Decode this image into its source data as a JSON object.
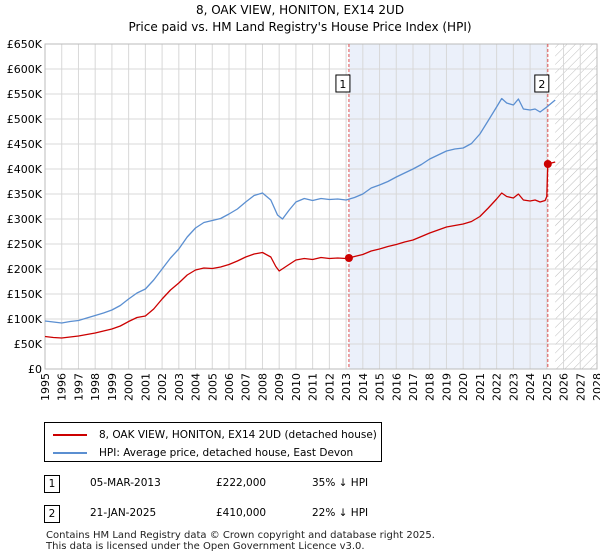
{
  "chart_data": {
    "type": "line",
    "title": "8, OAK VIEW, HONITON, EX14 2UD",
    "subtitle": "Price paid vs. HM Land Registry's House Price Index (HPI)",
    "xlim": [
      1995,
      2028
    ],
    "ylim": [
      0,
      650000
    ],
    "x_ticks": [
      1995,
      1996,
      1997,
      1998,
      1999,
      2000,
      2001,
      2002,
      2003,
      2004,
      2005,
      2006,
      2007,
      2008,
      2009,
      2010,
      2011,
      2012,
      2013,
      2014,
      2015,
      2016,
      2017,
      2018,
      2019,
      2020,
      2021,
      2022,
      2023,
      2024,
      2025,
      2026,
      2027,
      2028
    ],
    "y_ticks": [
      {
        "value": 0,
        "label": "£0"
      },
      {
        "value": 50000,
        "label": "£50K"
      },
      {
        "value": 100000,
        "label": "£100K"
      },
      {
        "value": 150000,
        "label": "£150K"
      },
      {
        "value": 200000,
        "label": "£200K"
      },
      {
        "value": 250000,
        "label": "£250K"
      },
      {
        "value": 300000,
        "label": "£300K"
      },
      {
        "value": 350000,
        "label": "£350K"
      },
      {
        "value": 400000,
        "label": "£400K"
      },
      {
        "value": 450000,
        "label": "£450K"
      },
      {
        "value": 500000,
        "label": "£500K"
      },
      {
        "value": 550000,
        "label": "£550K"
      },
      {
        "value": 600000,
        "label": "£600K"
      },
      {
        "value": 650000,
        "label": "£650K"
      }
    ],
    "grid": true,
    "shaded_region": {
      "from": 2013.17,
      "to": 2025.06,
      "color": "#dde6f7"
    },
    "hatched_region": {
      "from": 2025.5,
      "to": 2028
    },
    "series": [
      {
        "name": "8, OAK VIEW, HONITON, EX14 2UD (detached house)",
        "color": "#cc0000",
        "points": [
          [
            1995.0,
            65000
          ],
          [
            1995.5,
            63000
          ],
          [
            1996.0,
            62000
          ],
          [
            1996.5,
            64000
          ],
          [
            1997.0,
            66000
          ],
          [
            1997.5,
            69000
          ],
          [
            1998.0,
            72000
          ],
          [
            1998.5,
            76000
          ],
          [
            1999.0,
            80000
          ],
          [
            1999.5,
            86000
          ],
          [
            2000.0,
            95000
          ],
          [
            2000.5,
            103000
          ],
          [
            2001.0,
            106000
          ],
          [
            2001.5,
            120000
          ],
          [
            2002.0,
            140000
          ],
          [
            2002.5,
            158000
          ],
          [
            2003.0,
            172000
          ],
          [
            2003.5,
            188000
          ],
          [
            2004.0,
            198000
          ],
          [
            2004.5,
            202000
          ],
          [
            2005.0,
            201000
          ],
          [
            2005.5,
            204000
          ],
          [
            2006.0,
            209000
          ],
          [
            2006.5,
            216000
          ],
          [
            2007.0,
            224000
          ],
          [
            2007.5,
            230000
          ],
          [
            2008.0,
            233000
          ],
          [
            2008.5,
            224000
          ],
          [
            2008.8,
            205000
          ],
          [
            2009.0,
            196000
          ],
          [
            2009.5,
            207000
          ],
          [
            2010.0,
            218000
          ],
          [
            2010.5,
            221000
          ],
          [
            2011.0,
            219000
          ],
          [
            2011.5,
            223000
          ],
          [
            2012.0,
            221000
          ],
          [
            2012.5,
            222000
          ],
          [
            2013.0,
            221000
          ],
          [
            2013.17,
            222000
          ],
          [
            2013.5,
            225000
          ],
          [
            2014.0,
            229000
          ],
          [
            2014.5,
            236000
          ],
          [
            2015.0,
            240000
          ],
          [
            2015.5,
            245000
          ],
          [
            2016.0,
            249000
          ],
          [
            2016.5,
            254000
          ],
          [
            2017.0,
            258000
          ],
          [
            2017.5,
            265000
          ],
          [
            2018.0,
            272000
          ],
          [
            2018.5,
            278000
          ],
          [
            2019.0,
            284000
          ],
          [
            2019.5,
            287000
          ],
          [
            2020.0,
            290000
          ],
          [
            2020.5,
            295000
          ],
          [
            2021.0,
            305000
          ],
          [
            2021.5,
            322000
          ],
          [
            2022.0,
            340000
          ],
          [
            2022.3,
            352000
          ],
          [
            2022.6,
            345000
          ],
          [
            2023.0,
            342000
          ],
          [
            2023.3,
            350000
          ],
          [
            2023.6,
            338000
          ],
          [
            2024.0,
            336000
          ],
          [
            2024.3,
            338000
          ],
          [
            2024.6,
            334000
          ],
          [
            2024.9,
            337000
          ],
          [
            2025.0,
            345000
          ],
          [
            2025.06,
            410000
          ],
          [
            2025.5,
            414000
          ]
        ]
      },
      {
        "name": "HPI: Average price, detached house, East Devon",
        "color": "#5b8fd1",
        "points": [
          [
            1995.0,
            96000
          ],
          [
            1995.5,
            94000
          ],
          [
            1996.0,
            92000
          ],
          [
            1996.5,
            95000
          ],
          [
            1997.0,
            97000
          ],
          [
            1997.5,
            102000
          ],
          [
            1998.0,
            107000
          ],
          [
            1998.5,
            112000
          ],
          [
            1999.0,
            118000
          ],
          [
            1999.5,
            127000
          ],
          [
            2000.0,
            140000
          ],
          [
            2000.5,
            152000
          ],
          [
            2001.0,
            160000
          ],
          [
            2001.5,
            178000
          ],
          [
            2002.0,
            200000
          ],
          [
            2002.5,
            222000
          ],
          [
            2003.0,
            240000
          ],
          [
            2003.5,
            264000
          ],
          [
            2004.0,
            282000
          ],
          [
            2004.5,
            293000
          ],
          [
            2005.0,
            297000
          ],
          [
            2005.5,
            301000
          ],
          [
            2006.0,
            310000
          ],
          [
            2006.5,
            320000
          ],
          [
            2007.0,
            334000
          ],
          [
            2007.5,
            347000
          ],
          [
            2008.0,
            352000
          ],
          [
            2008.5,
            338000
          ],
          [
            2008.9,
            308000
          ],
          [
            2009.2,
            300000
          ],
          [
            2009.6,
            318000
          ],
          [
            2010.0,
            334000
          ],
          [
            2010.5,
            341000
          ],
          [
            2011.0,
            337000
          ],
          [
            2011.5,
            341000
          ],
          [
            2012.0,
            339000
          ],
          [
            2012.5,
            340000
          ],
          [
            2013.0,
            338000
          ],
          [
            2013.5,
            343000
          ],
          [
            2014.0,
            350000
          ],
          [
            2014.5,
            362000
          ],
          [
            2015.0,
            368000
          ],
          [
            2015.5,
            375000
          ],
          [
            2016.0,
            384000
          ],
          [
            2016.5,
            392000
          ],
          [
            2017.0,
            400000
          ],
          [
            2017.5,
            409000
          ],
          [
            2018.0,
            420000
          ],
          [
            2018.5,
            428000
          ],
          [
            2019.0,
            436000
          ],
          [
            2019.5,
            440000
          ],
          [
            2020.0,
            442000
          ],
          [
            2020.5,
            451000
          ],
          [
            2021.0,
            470000
          ],
          [
            2021.5,
            497000
          ],
          [
            2022.0,
            524000
          ],
          [
            2022.3,
            541000
          ],
          [
            2022.6,
            532000
          ],
          [
            2023.0,
            528000
          ],
          [
            2023.3,
            540000
          ],
          [
            2023.6,
            520000
          ],
          [
            2024.0,
            518000
          ],
          [
            2024.3,
            520000
          ],
          [
            2024.6,
            514000
          ],
          [
            2025.0,
            524000
          ],
          [
            2025.5,
            538000
          ]
        ]
      }
    ],
    "annotations": [
      {
        "label": "1",
        "x": 2013.17,
        "y": 222000
      },
      {
        "label": "2",
        "x": 2025.06,
        "y": 410000
      }
    ]
  },
  "legend": {
    "entries": [
      {
        "label": "8, OAK VIEW, HONITON, EX14 2UD (detached house)",
        "color": "#cc0000"
      },
      {
        "label": "HPI: Average price, detached house, East Devon",
        "color": "#5b8fd1"
      }
    ]
  },
  "transactions": [
    {
      "id": "1",
      "date": "05-MAR-2013",
      "price": "£222,000",
      "hpi": "35% ↓ HPI"
    },
    {
      "id": "2",
      "date": "21-JAN-2025",
      "price": "£410,000",
      "hpi": "22% ↓ HPI"
    }
  ],
  "footer": {
    "line1": "Contains HM Land Registry data © Crown copyright and database right 2025.",
    "line2": "This data is licensed under the Open Government Licence v3.0."
  }
}
